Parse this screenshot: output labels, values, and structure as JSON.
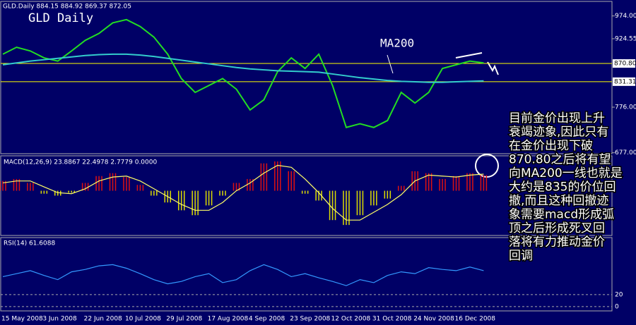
{
  "chart_data": [
    {
      "type": "line",
      "header": "GLD.Daily  884.15 884.92 869.37 872.05",
      "title": "GLD Daily",
      "series": [
        {
          "color": "#22dd22",
          "values": [
            891,
            906,
            898,
            883,
            876,
            898,
            921,
            936,
            959,
            966,
            951,
            928,
            891,
            838,
            808,
            823,
            838,
            815,
            770,
            792,
            853,
            883,
            860,
            891,
            823,
            732,
            740,
            732,
            747,
            808,
            785,
            808,
            860,
            868,
            876,
            872
          ]
        },
        {
          "name": "MA200",
          "color": "#33cccc",
          "values": [
            868,
            872,
            876,
            879,
            882,
            885,
            888,
            890,
            891,
            891,
            889,
            886,
            882,
            878,
            874,
            870,
            866,
            862,
            859,
            857,
            855,
            854,
            853,
            852,
            848,
            844,
            840,
            837,
            834,
            832,
            831,
            830,
            830,
            831,
            832,
            833
          ]
        }
      ],
      "ylim": [
        675,
        1004
      ],
      "yticks": [
        {
          "value": 974,
          "label": "974.00"
        },
        {
          "value": 924.55,
          "label": "924.55"
        },
        {
          "value": 870.8,
          "label": "870.80",
          "highlight": true
        },
        {
          "value": 831.31,
          "label": "831.31",
          "highlight": true
        },
        {
          "value": 776,
          "label": "776.00"
        },
        {
          "value": 677,
          "label": "677.00"
        }
      ],
      "level_color": "#ffff00",
      "annotations": [
        "目前金价出现上升",
        "衰竭迹象,因此只有",
        "在金价出现下破",
        "870.80之后将有望",
        "向MA200一线也就是",
        "大约是835的价位回",
        "撤,而且这种回撤迹",
        "象需要macd形成弧",
        "顶之后形成死叉回",
        "落将有力推动金价",
        "回调"
      ]
    },
    {
      "type": "macd",
      "title": "MACD(12,26,9) 23.8867 22.4978 2.7779 0.0000",
      "series": [
        {
          "color": "#dd1111",
          "negative_color": "#dddd00",
          "values": [
            10,
            12,
            8,
            -3,
            -5,
            -2,
            8,
            15,
            18,
            14,
            6,
            -5,
            -12,
            -20,
            -25,
            -15,
            -5,
            8,
            12,
            28,
            30,
            20,
            -3,
            -10,
            -30,
            -35,
            -25,
            -15,
            -8,
            5,
            20,
            18,
            12,
            15,
            18,
            16
          ]
        },
        {
          "color": "#ffff66",
          "values": [
            8,
            10,
            10,
            4,
            -2,
            -3,
            2,
            10,
            14,
            15,
            10,
            2,
            -6,
            -14,
            -20,
            -20,
            -12,
            0,
            8,
            18,
            26,
            24,
            12,
            -2,
            -18,
            -30,
            -30,
            -22,
            -14,
            -4,
            10,
            16,
            15,
            14,
            16,
            17
          ]
        }
      ],
      "ylim": [
        -45,
        35
      ]
    },
    {
      "type": "line",
      "title": "RSI(14) 61.6088",
      "categories": [
        "15 May 2008",
        null,
        null,
        "3 Jun 2008",
        null,
        null,
        "22 Jun 2008",
        null,
        null,
        "10 Jul 2008",
        null,
        null,
        "29 Jul 2008",
        null,
        null,
        "17 Aug 2008",
        null,
        null,
        "4 Sep 2008",
        null,
        null,
        "23 Sep 2008",
        null,
        null,
        "12 Oct 2008",
        null,
        null,
        "31 Oct 2008",
        null,
        null,
        "24 Nov 2008",
        null,
        null,
        "16 Dec 2008",
        null,
        null
      ],
      "series": [
        {
          "color": "#3399ff",
          "values": [
            50,
            55,
            60,
            52,
            45,
            58,
            62,
            68,
            70,
            64,
            55,
            45,
            38,
            42,
            50,
            55,
            40,
            45,
            60,
            70,
            62,
            50,
            55,
            48,
            42,
            35,
            45,
            40,
            52,
            58,
            55,
            65,
            62,
            60,
            66,
            60
          ]
        }
      ],
      "ylim": [
        -6,
        114
      ],
      "yticks": [
        20,
        0
      ],
      "level_color": "#aaaaaa"
    }
  ]
}
